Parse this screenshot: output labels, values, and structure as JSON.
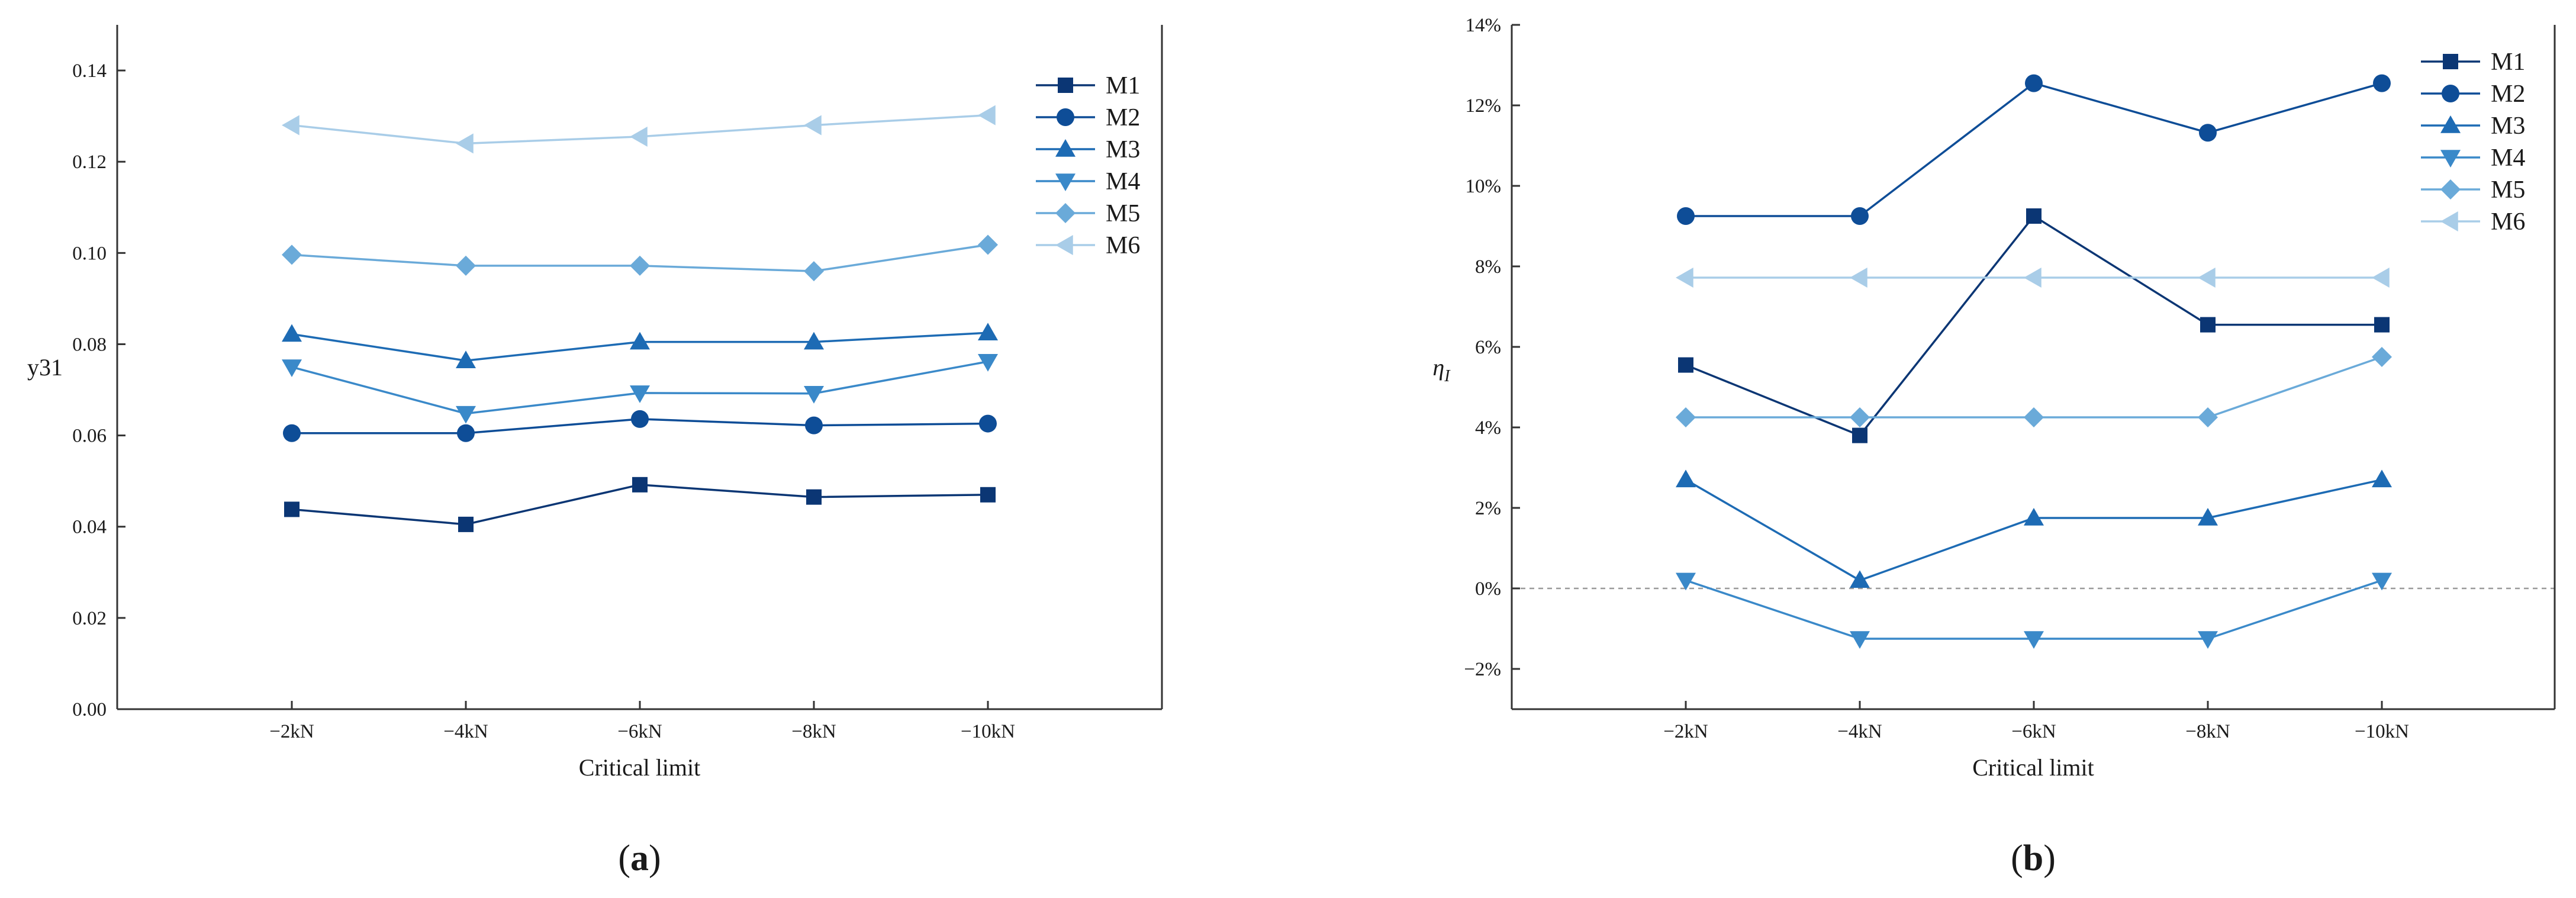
{
  "chart_data": [
    {
      "type": "line",
      "panel_label": "(a)",
      "categories": [
        "−2kN",
        "−4kN",
        "−6kN",
        "−8kN",
        "−10kN"
      ],
      "xlabel": "Critical limit",
      "ylabel": "y31",
      "ylim": [
        0,
        0.15
      ],
      "yticks": [
        0.0,
        0.02,
        0.04,
        0.06,
        0.08,
        0.1,
        0.12,
        0.14
      ],
      "ytick_labels": [
        "0.00",
        "0.02",
        "0.04",
        "0.06",
        "0.08",
        "0.10",
        "0.12",
        "0.14"
      ],
      "legend_position": "top-right",
      "series": [
        {
          "name": "M1",
          "marker": "square",
          "color": "#0b3674",
          "values": [
            0.0438,
            0.0405,
            0.0492,
            0.0465,
            0.047
          ]
        },
        {
          "name": "M2",
          "marker": "circle",
          "color": "#0e4d97",
          "values": [
            0.0605,
            0.0605,
            0.0636,
            0.0622,
            0.0626
          ]
        },
        {
          "name": "M3",
          "marker": "triangle-up",
          "color": "#1d6bb4",
          "values": [
            0.0822,
            0.0764,
            0.0805,
            0.0805,
            0.0825
          ]
        },
        {
          "name": "M4",
          "marker": "triangle-down",
          "color": "#3a89c9",
          "values": [
            0.075,
            0.0648,
            0.0693,
            0.0692,
            0.0762
          ]
        },
        {
          "name": "M5",
          "marker": "diamond",
          "color": "#6aaad9",
          "values": [
            0.0996,
            0.0972,
            0.0972,
            0.096,
            0.1018
          ]
        },
        {
          "name": "M6",
          "marker": "triangle-left",
          "color": "#a9cde8",
          "values": [
            0.128,
            0.124,
            0.1255,
            0.128,
            0.1302
          ]
        }
      ]
    },
    {
      "type": "line",
      "panel_label": "(b)",
      "categories": [
        "−2kN",
        "−4kN",
        "−6kN",
        "−8kN",
        "−10kN"
      ],
      "xlabel": "Critical limit",
      "ylabel": "η",
      "ylabel_sub": "I",
      "ylim": [
        -3,
        14
      ],
      "yticks": [
        -2,
        0,
        2,
        4,
        6,
        8,
        10,
        12,
        14
      ],
      "ytick_labels": [
        "−2%",
        "0%",
        "2%",
        "4%",
        "6%",
        "8%",
        "10%",
        "12%",
        "14%"
      ],
      "reference_line": 0,
      "legend_position": "top-right",
      "series": [
        {
          "name": "M1",
          "marker": "square",
          "color": "#0b3674",
          "values": [
            5.55,
            3.8,
            9.25,
            6.55,
            6.55
          ]
        },
        {
          "name": "M2",
          "marker": "circle",
          "color": "#0e4d97",
          "values": [
            9.25,
            9.25,
            12.55,
            11.32,
            12.55
          ]
        },
        {
          "name": "M3",
          "marker": "triangle-up",
          "color": "#1d6bb4",
          "values": [
            2.7,
            0.2,
            1.75,
            1.75,
            2.7
          ]
        },
        {
          "name": "M4",
          "marker": "triangle-down",
          "color": "#3a89c9",
          "values": [
            0.2,
            -1.25,
            -1.25,
            -1.25,
            0.2
          ]
        },
        {
          "name": "M5",
          "marker": "diamond",
          "color": "#6aaad9",
          "values": [
            4.25,
            4.25,
            4.25,
            4.25,
            5.75
          ]
        },
        {
          "name": "M6",
          "marker": "triangle-left",
          "color": "#a9cde8",
          "values": [
            7.72,
            7.72,
            7.72,
            7.72,
            7.72
          ]
        }
      ]
    }
  ]
}
